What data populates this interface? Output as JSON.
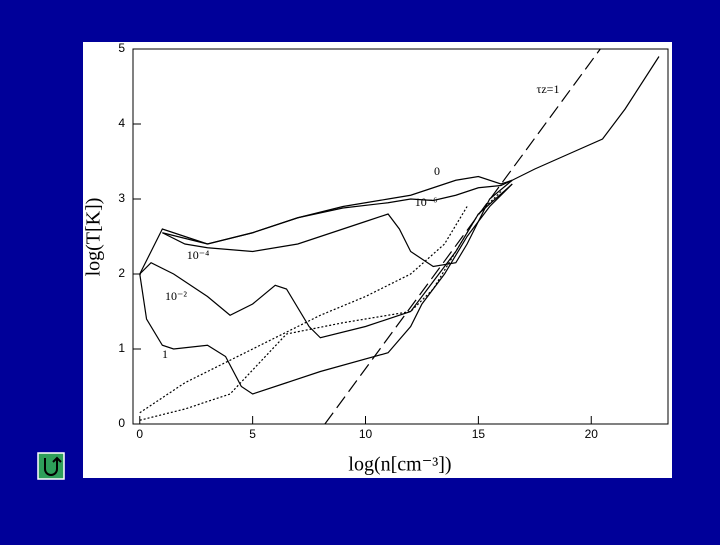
{
  "chart_data": {
    "type": "line",
    "x_label": "log(n[cm⁻³])",
    "y_label": "log(T[K])",
    "xlim": [
      -0.3,
      23.4
    ],
    "ylim": [
      0,
      5
    ],
    "xticks": [
      0,
      5,
      10,
      15,
      20
    ],
    "yticks": [
      0,
      1,
      2,
      3,
      4,
      5
    ],
    "series": [
      {
        "name": "0",
        "color": "#000000",
        "style": "solid",
        "x": [
          0,
          0.5,
          1,
          2,
          3,
          5,
          7,
          9,
          10,
          11,
          12,
          13,
          14,
          15,
          16,
          16.5,
          17.5,
          19,
          20.5,
          21.5,
          23
        ],
        "values": [
          2.0,
          2.3,
          2.6,
          2.5,
          2.4,
          2.55,
          2.75,
          2.9,
          2.95,
          3.0,
          3.05,
          3.15,
          3.25,
          3.3,
          3.2,
          3.25,
          3.4,
          3.6,
          3.8,
          4.2,
          4.9
        ]
      },
      {
        "name": "10⁻⁶",
        "color": "#000000",
        "style": "solid",
        "x": [
          1,
          3,
          5,
          7,
          9,
          11,
          12,
          13,
          14,
          15,
          16,
          16.5
        ],
        "values": [
          2.55,
          2.4,
          2.55,
          2.75,
          2.88,
          2.95,
          3.0,
          2.98,
          3.05,
          3.15,
          3.18,
          3.25
        ]
      },
      {
        "name": "10⁻⁴",
        "color": "#000000",
        "style": "solid",
        "x": [
          1,
          2,
          3,
          5,
          7,
          9,
          10,
          11,
          11.5,
          12,
          13,
          14,
          14.5,
          15.5,
          16.5
        ],
        "values": [
          2.55,
          2.4,
          2.35,
          2.3,
          2.4,
          2.6,
          2.7,
          2.8,
          2.6,
          2.3,
          2.1,
          2.15,
          2.4,
          3.0,
          3.25
        ]
      },
      {
        "name": "10⁻²",
        "color": "#000000",
        "style": "solid",
        "x": [
          0,
          0.5,
          1.5,
          3,
          4,
          5,
          6,
          6.5,
          7.5,
          8,
          10,
          12,
          13,
          14,
          15,
          16.5
        ],
        "values": [
          2.0,
          2.15,
          2.0,
          1.7,
          1.45,
          1.6,
          1.85,
          1.8,
          1.3,
          1.15,
          1.3,
          1.5,
          1.9,
          2.3,
          2.8,
          3.2
        ]
      },
      {
        "name": "1",
        "color": "#000000",
        "style": "solid",
        "x": [
          0,
          0.3,
          1,
          1.5,
          3,
          3.8,
          4.5,
          5,
          6.5,
          8,
          11,
          12,
          12.5,
          13.5,
          14.5,
          15.5,
          16.5
        ],
        "values": [
          2.0,
          1.4,
          1.05,
          1.0,
          1.05,
          0.9,
          0.5,
          0.4,
          0.55,
          0.7,
          0.95,
          1.3,
          1.6,
          2.0,
          2.5,
          2.9,
          3.2
        ]
      },
      {
        "name": "τz=1",
        "color": "#000000",
        "style": "dashed",
        "x": [
          8.2,
          20.4
        ],
        "values": [
          0,
          5
        ]
      },
      {
        "color": "#000000",
        "style": "dotted",
        "x": [
          0,
          2,
          5,
          8,
          10,
          12,
          13.5,
          14.5
        ],
        "values": [
          0.15,
          0.55,
          1.0,
          1.45,
          1.7,
          2.0,
          2.4,
          2.9
        ]
      },
      {
        "color": "#000000",
        "style": "dotted",
        "x": [
          0,
          2,
          4,
          6.5,
          9,
          12,
          13,
          14,
          15,
          16
        ],
        "values": [
          0.05,
          0.2,
          0.4,
          1.2,
          1.35,
          1.5,
          1.8,
          2.3,
          2.8,
          3.1
        ]
      }
    ]
  }
}
